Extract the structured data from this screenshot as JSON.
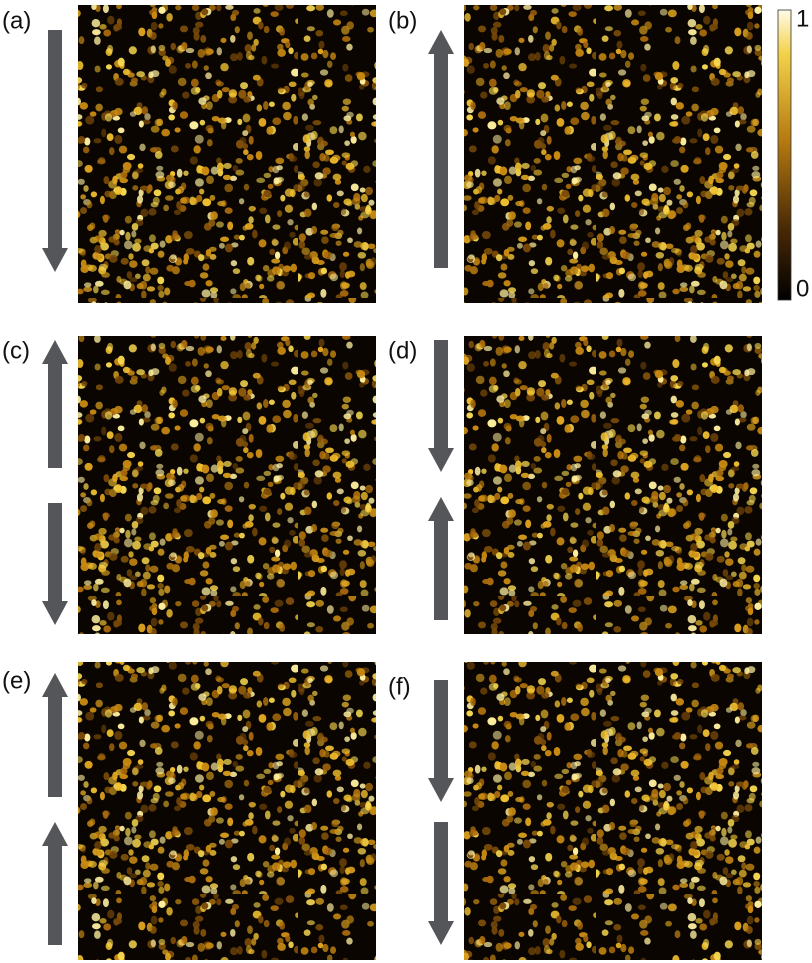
{
  "panels": [
    {
      "label": "(a)"
    },
    {
      "label": "(b)"
    },
    {
      "label": "(c)"
    },
    {
      "label": "(d)"
    },
    {
      "label": "(e)"
    },
    {
      "label": "(f)"
    }
  ],
  "colorbar": {
    "ticks": [
      0,
      1
    ]
  }
}
